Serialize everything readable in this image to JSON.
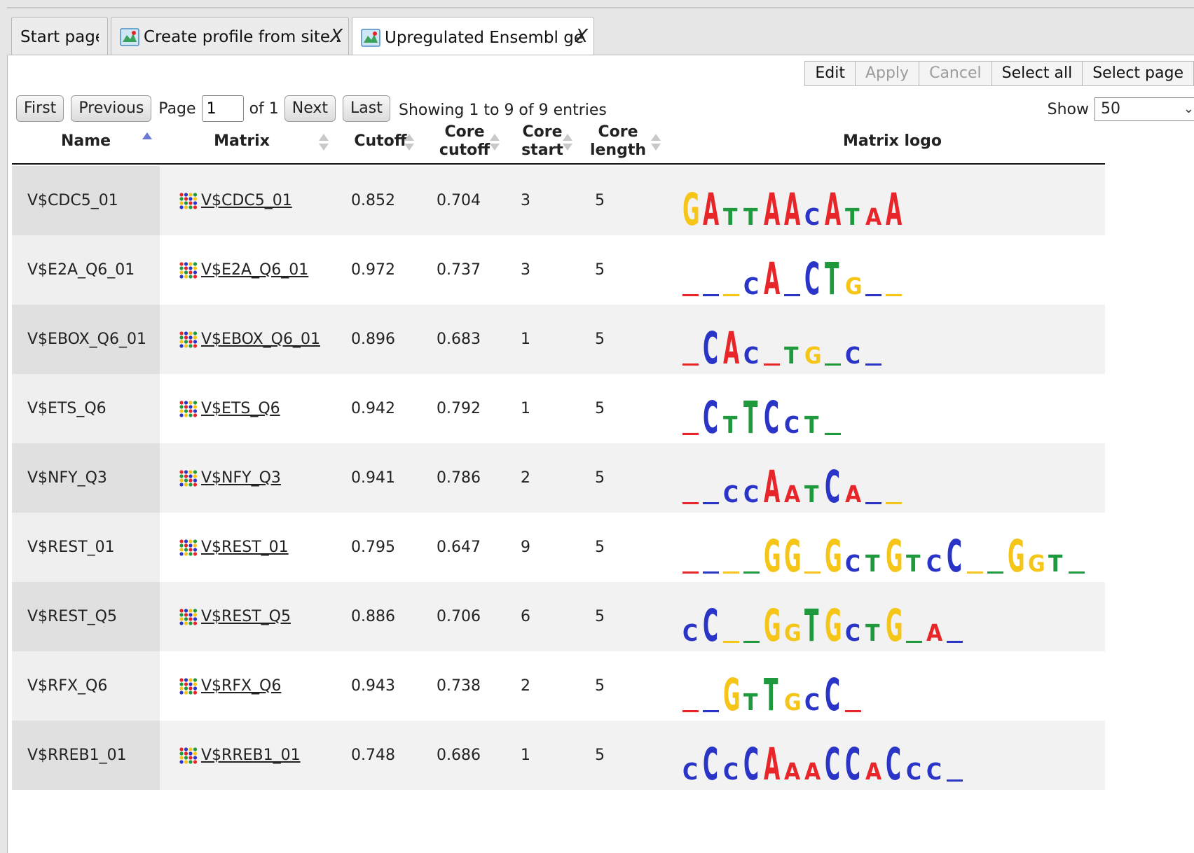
{
  "tabs": [
    {
      "label": "Start page",
      "icon": "none",
      "closable": false,
      "active": false
    },
    {
      "label": "Create profile from site ...",
      "icon": "site-model-icon",
      "closable": true,
      "active": false
    },
    {
      "label": "Upregulated Ensembl ge...",
      "icon": "profile-icon",
      "closable": true,
      "active": true
    }
  ],
  "tab_close_label": "X",
  "toolbar": {
    "edit": "Edit",
    "apply": "Apply",
    "cancel": "Cancel",
    "select_all": "Select all",
    "select_page": "Select page"
  },
  "pager": {
    "first": "First",
    "previous": "Previous",
    "page_label": "Page",
    "page_value": "1",
    "of_label": "of 1",
    "next": "Next",
    "last": "Last",
    "entries_text": "Showing 1 to 9 of 9 entries",
    "show_label": "Show",
    "show_value": "50"
  },
  "columns": {
    "name": "Name",
    "matrix": "Matrix",
    "cutoff": "Cutoff",
    "core_cutoff": [
      "Core",
      "cutoff"
    ],
    "core_start": [
      "Core",
      "start"
    ],
    "core_length": [
      "Core",
      "length"
    ],
    "matrix_logo": "Matrix logo"
  },
  "colors": {
    "A": "#e8262a",
    "C": "#2a35c8",
    "G": "#f5c518",
    "T": "#1e9a3c",
    "sort_active": "#6a78d6",
    "sort_inactive": "#c8c8c8"
  },
  "rows": [
    {
      "name": "V$CDC5_01",
      "matrix": "V$CDC5_01",
      "cutoff": "0.852",
      "core_cutoff": "0.704",
      "core_start": "3",
      "core_length": "5",
      "logo": [
        "G",
        "A",
        "T",
        "T",
        "A",
        "A",
        "C",
        "A",
        "T",
        "A",
        "A"
      ]
    },
    {
      "name": "V$E2A_Q6_01",
      "matrix": "V$E2A_Q6_01",
      "cutoff": "0.972",
      "core_cutoff": "0.737",
      "core_start": "3",
      "core_length": "5",
      "logo": [
        "-",
        "-",
        "-",
        "C",
        "A",
        "-",
        "C",
        "T",
        "G",
        "-",
        "-"
      ]
    },
    {
      "name": "V$EBOX_Q6_01",
      "matrix": "V$EBOX_Q6_01",
      "cutoff": "0.896",
      "core_cutoff": "0.683",
      "core_start": "1",
      "core_length": "5",
      "logo": [
        "-",
        "C",
        "A",
        "C",
        "-",
        "T",
        "G",
        "-",
        "C",
        "-"
      ]
    },
    {
      "name": "V$ETS_Q6",
      "matrix": "V$ETS_Q6",
      "cutoff": "0.942",
      "core_cutoff": "0.792",
      "core_start": "1",
      "core_length": "5",
      "logo": [
        "-",
        "C",
        "T",
        "T",
        "C",
        "C",
        "T",
        "-"
      ]
    },
    {
      "name": "V$NFY_Q3",
      "matrix": "V$NFY_Q3",
      "cutoff": "0.941",
      "core_cutoff": "0.786",
      "core_start": "2",
      "core_length": "5",
      "logo": [
        "-",
        "-",
        "C",
        "C",
        "A",
        "A",
        "T",
        "C",
        "A",
        "-",
        "-"
      ]
    },
    {
      "name": "V$REST_01",
      "matrix": "V$REST_01",
      "cutoff": "0.795",
      "core_cutoff": "0.647",
      "core_start": "9",
      "core_length": "5",
      "logo": [
        "-",
        "-",
        "-",
        "-",
        "G",
        "G",
        "-",
        "G",
        "C",
        "T",
        "G",
        "T",
        "C",
        "C",
        "-",
        "-",
        "G",
        "G",
        "T",
        "-"
      ]
    },
    {
      "name": "V$REST_Q5",
      "matrix": "V$REST_Q5",
      "cutoff": "0.886",
      "core_cutoff": "0.706",
      "core_start": "6",
      "core_length": "5",
      "logo": [
        "C",
        "C",
        "-",
        "-",
        "G",
        "G",
        "T",
        "G",
        "C",
        "T",
        "G",
        "-",
        "A",
        "-"
      ]
    },
    {
      "name": "V$RFX_Q6",
      "matrix": "V$RFX_Q6",
      "cutoff": "0.943",
      "core_cutoff": "0.738",
      "core_start": "2",
      "core_length": "5",
      "logo": [
        "-",
        "-",
        "G",
        "T",
        "T",
        "G",
        "C",
        "C",
        "-"
      ]
    },
    {
      "name": "V$RREB1_01",
      "matrix": "V$RREB1_01",
      "cutoff": "0.748",
      "core_cutoff": "0.686",
      "core_start": "1",
      "core_length": "5",
      "logo": [
        "C",
        "C",
        "C",
        "C",
        "A",
        "A",
        "A",
        "C",
        "C",
        "A",
        "C",
        "C",
        "C",
        "-"
      ]
    }
  ]
}
